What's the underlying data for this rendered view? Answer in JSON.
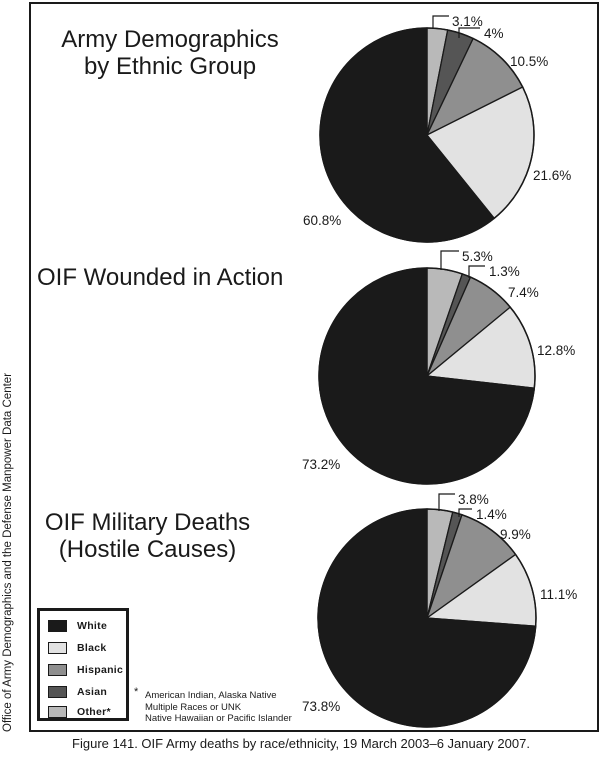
{
  "side_credit": "Office of Army Demographics and the Defense Manpower Data Center",
  "caption": "Figure 141. OIF Army deaths by race/ethnicity, 19 March 2003–6 January 2007.",
  "colors": {
    "White": "#1a1a1a",
    "Black": "#e2e2e2",
    "Hispanic": "#8f8f8f",
    "Asian": "#555555",
    "Other": "#b9b9b9"
  },
  "legend": {
    "items": [
      {
        "label": "White",
        "color": "#1a1a1a"
      },
      {
        "label": "Black",
        "color": "#e2e2e2"
      },
      {
        "label": "Hispanic",
        "color": "#8f8f8f"
      },
      {
        "label": "Asian",
        "color": "#555555"
      },
      {
        "label": "Other*",
        "color": "#b9b9b9"
      }
    ]
  },
  "footnote": {
    "marker": "*",
    "lines": [
      "American Indian, Alaska Native",
      "Multiple Races or UNK",
      "Native Hawaiian or Pacific Islander"
    ]
  },
  "chart_data": [
    {
      "type": "pie",
      "title_lines": [
        "Army Demographics",
        "by Ethnic Group"
      ],
      "slices": [
        {
          "category": "Other",
          "value": 3.1,
          "label": "3.1%"
        },
        {
          "category": "Asian",
          "value": 4,
          "label": "4%"
        },
        {
          "category": "Hispanic",
          "value": 10.5,
          "label": "10.5%"
        },
        {
          "category": "Black",
          "value": 21.6,
          "label": "21.6%"
        },
        {
          "category": "White",
          "value": 60.8,
          "label": "60.8%"
        }
      ]
    },
    {
      "type": "pie",
      "title_lines": [
        "OIF Wounded in Action"
      ],
      "slices": [
        {
          "category": "Other",
          "value": 5.3,
          "label": "5.3%"
        },
        {
          "category": "Asian",
          "value": 1.3,
          "label": "1.3%"
        },
        {
          "category": "Hispanic",
          "value": 7.4,
          "label": "7.4%"
        },
        {
          "category": "Black",
          "value": 12.8,
          "label": "12.8%"
        },
        {
          "category": "White",
          "value": 73.2,
          "label": "73.2%"
        }
      ]
    },
    {
      "type": "pie",
      "title_lines": [
        "OIF Military Deaths",
        "(Hostile Causes)"
      ],
      "slices": [
        {
          "category": "Other",
          "value": 3.8,
          "label": "3.8%"
        },
        {
          "category": "Asian",
          "value": 1.4,
          "label": "1.4%"
        },
        {
          "category": "Hispanic",
          "value": 9.9,
          "label": "9.9%"
        },
        {
          "category": "Black",
          "value": 11.1,
          "label": "11.1%"
        },
        {
          "category": "White",
          "value": 73.8,
          "label": "73.8%"
        }
      ]
    }
  ]
}
